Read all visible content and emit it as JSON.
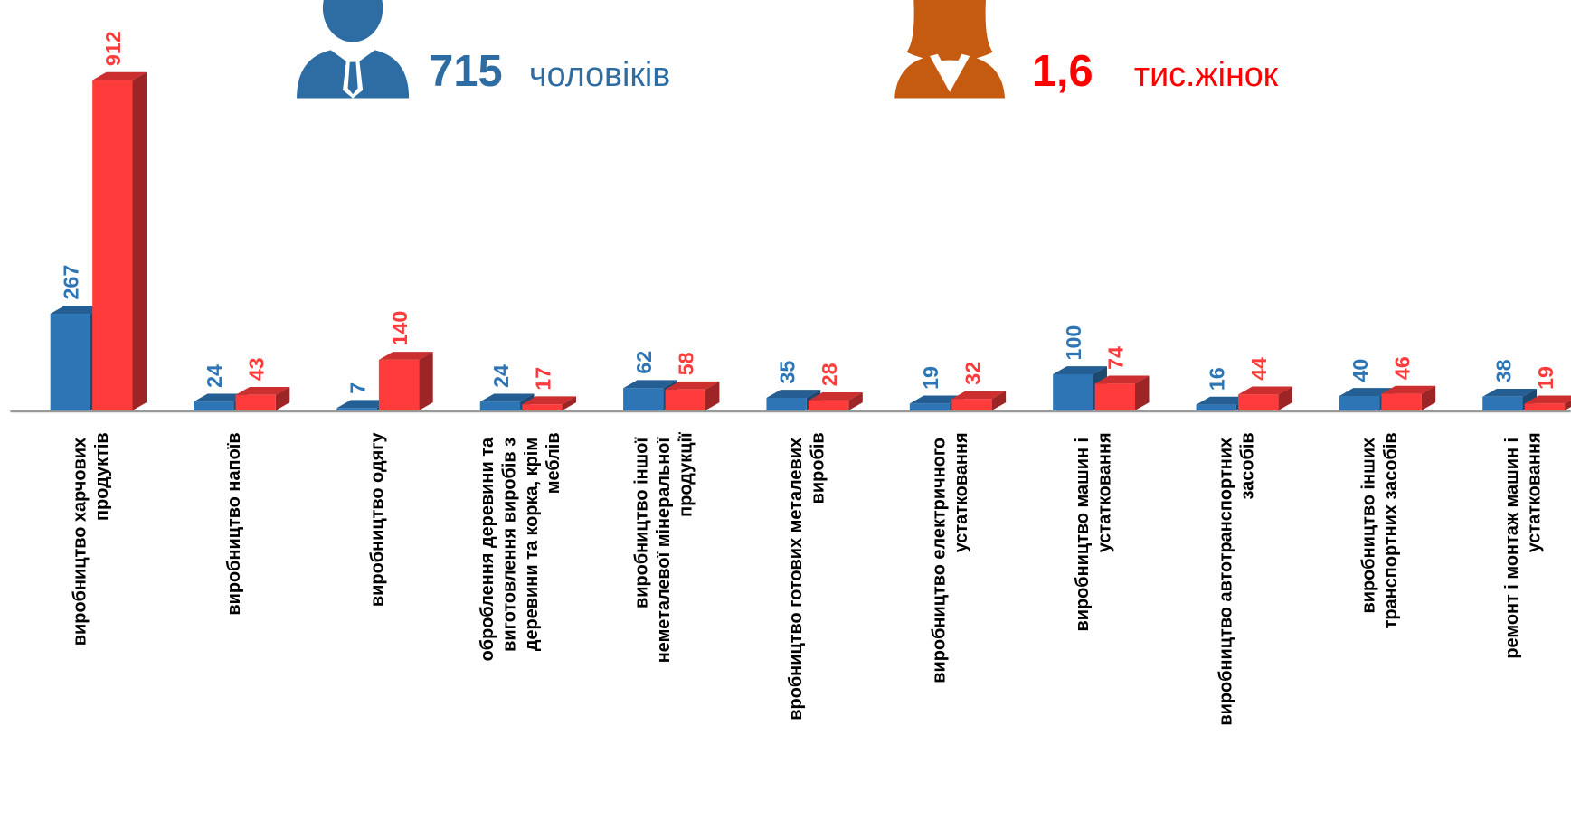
{
  "chart_data": {
    "type": "bar3d",
    "annotations": [
      {
        "text": "715",
        "unit": "чоловіків",
        "color": "#2e6da4"
      },
      {
        "text": "1,6",
        "unit": "тис.жінок",
        "color": "#ff0000"
      }
    ],
    "categories": [
      "виробництво харчових продуктів",
      "виробництво напоїв",
      "виробництво одягу",
      "оброблення деревини та виготовлення виробів з деревини та корка, крім меблів",
      "виробництво іншої неметалевої мінеральної продукції",
      "вробництво готових металевих виробів",
      "виробництво електричного устатковання",
      "виробництво машин і устатковання",
      "виробництво автотранспортних засобів",
      "виробництво інших транспортних засобів",
      "ремонт і монтаж машин і устатковання"
    ],
    "series": [
      {
        "color": "#2e75b6",
        "label_color": "#2e75b6",
        "values": [
          267,
          24,
          7,
          24,
          62,
          35,
          19,
          100,
          16,
          40,
          38
        ]
      },
      {
        "color": "#ff3b3b",
        "label_color": "#ff3b3b",
        "values": [
          912,
          43,
          140,
          17,
          58,
          28,
          32,
          74,
          44,
          46,
          19
        ]
      }
    ]
  }
}
